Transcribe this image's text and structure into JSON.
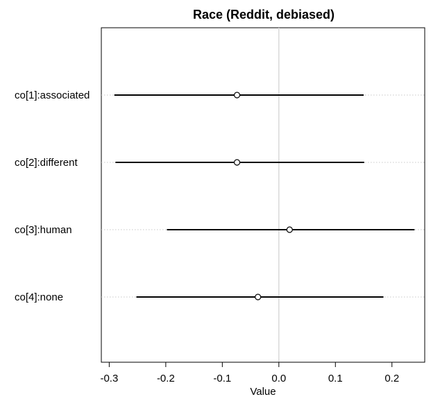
{
  "chart_data": {
    "type": "interval",
    "title": "Race (Reddit, debiased)",
    "xlabel": "Value",
    "ylabel": "",
    "xlim": [
      -0.31,
      0.26
    ],
    "xticks": [
      -0.3,
      -0.2,
      -0.1,
      0.0,
      0.1,
      0.2
    ],
    "xtick_labels": [
      "-0.3",
      "-0.2",
      "-0.1",
      "0.0",
      "0.1",
      "0.2"
    ],
    "reference_line": 0.0,
    "grid": "horizontal dotted guide per row",
    "series": [
      {
        "label": "co[1]:associated",
        "estimate": -0.074,
        "lower": -0.291,
        "upper": 0.15
      },
      {
        "label": "co[2]:different",
        "estimate": -0.074,
        "lower": -0.289,
        "upper": 0.151
      },
      {
        "label": "co[3]:human",
        "estimate": 0.019,
        "lower": -0.198,
        "upper": 0.24
      },
      {
        "label": "co[4]:none",
        "estimate": -0.037,
        "lower": -0.252,
        "upper": 0.185
      }
    ]
  }
}
